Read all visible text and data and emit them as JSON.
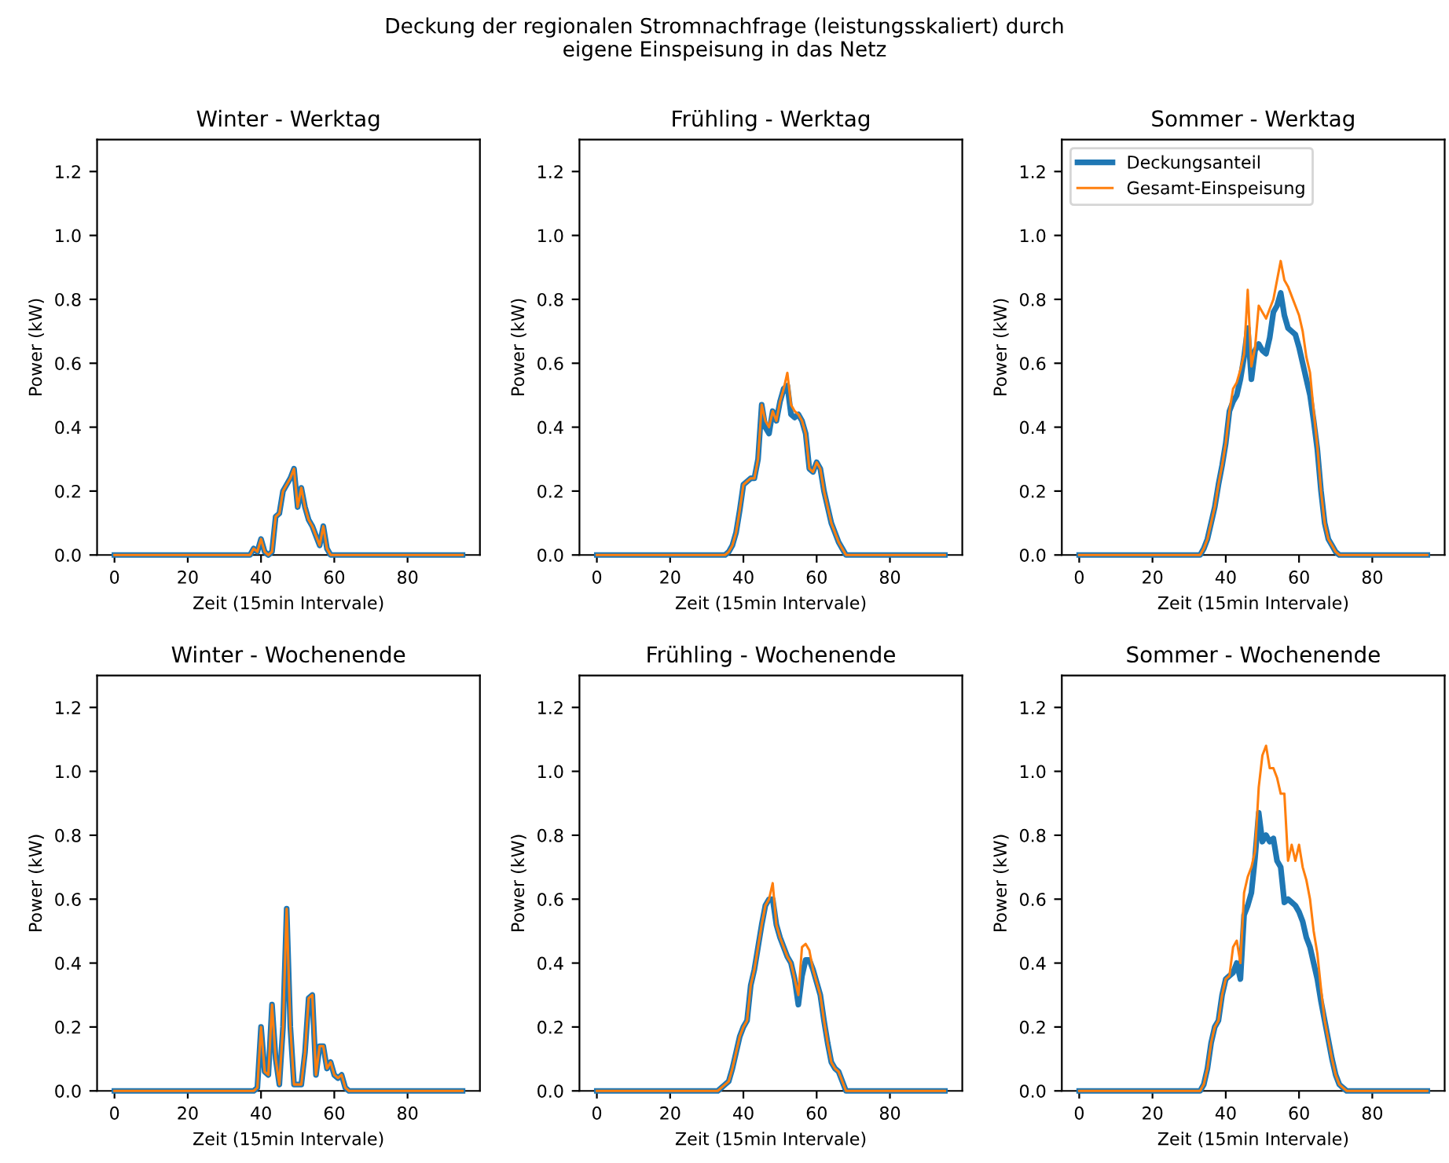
{
  "chart_data": [
    {
      "type": "line",
      "title": "Winter - Werktag",
      "xlabel": "Zeit (15min Intervale)",
      "ylabel": "Power (kW)",
      "annotations": [
        "Deckung der regionalen Stromnachfrage (leistungsskaliert) durch\neigene Einspeisung in das Netz"
      ],
      "x": [
        0,
        37,
        38,
        39,
        40,
        41,
        42,
        43,
        44,
        45,
        46,
        47,
        48,
        49,
        50,
        51,
        52,
        53,
        54,
        55,
        56,
        57,
        58,
        59,
        95
      ],
      "series": [
        {
          "color": "#1f77b4",
          "values": [
            0,
            0,
            0.02,
            0.01,
            0.05,
            0.01,
            0,
            0.01,
            0.12,
            0.13,
            0.2,
            0.22,
            0.24,
            0.27,
            0.15,
            0.21,
            0.15,
            0.11,
            0.09,
            0.06,
            0.03,
            0.09,
            0.02,
            0,
            0
          ]
        },
        {
          "color": "#ff7f0e",
          "values": [
            0,
            0,
            0.02,
            0.01,
            0.05,
            0.01,
            0,
            0.01,
            0.12,
            0.13,
            0.2,
            0.22,
            0.24,
            0.27,
            0.15,
            0.21,
            0.15,
            0.11,
            0.09,
            0.06,
            0.03,
            0.09,
            0.02,
            0,
            0
          ]
        }
      ],
      "xlim": [
        -4.75,
        99.75
      ],
      "ylim": [
        0,
        1.3
      ],
      "xticks": [
        0,
        20,
        40,
        60,
        80
      ],
      "yticks": [
        {
          "value": 0,
          "label": "0.0"
        },
        {
          "value": 0.2,
          "label": "0.2"
        },
        {
          "value": 0.4,
          "label": "0.4"
        },
        {
          "value": 0.6,
          "label": "0.6"
        },
        {
          "value": 0.8,
          "label": "0.8"
        },
        {
          "value": 1.0,
          "label": "1.0"
        },
        {
          "value": 1.2,
          "label": "1.2"
        }
      ]
    },
    {
      "type": "line",
      "title": "Frühling - Werktag",
      "xlabel": "Zeit (15min Intervale)",
      "ylabel": "Power (kW)",
      "x": [
        0,
        35,
        36,
        37,
        38,
        39,
        40,
        41,
        42,
        43,
        44,
        45,
        46,
        47,
        48,
        49,
        50,
        51,
        52,
        53,
        54,
        55,
        56,
        57,
        58,
        59,
        60,
        61,
        62,
        63,
        64,
        65,
        66,
        67,
        68,
        95
      ],
      "series": [
        {
          "color": "#1f77b4",
          "values": [
            0,
            0,
            0.01,
            0.03,
            0.07,
            0.14,
            0.22,
            0.23,
            0.24,
            0.24,
            0.3,
            0.47,
            0.4,
            0.38,
            0.45,
            0.42,
            0.48,
            0.52,
            0.53,
            0.44,
            0.43,
            0.44,
            0.42,
            0.38,
            0.27,
            0.26,
            0.29,
            0.27,
            0.2,
            0.15,
            0.1,
            0.07,
            0.04,
            0.02,
            0,
            0
          ]
        },
        {
          "color": "#ff7f0e",
          "values": [
            0,
            0,
            0.01,
            0.03,
            0.07,
            0.14,
            0.22,
            0.23,
            0.24,
            0.24,
            0.3,
            0.47,
            0.42,
            0.4,
            0.45,
            0.42,
            0.48,
            0.52,
            0.57,
            0.47,
            0.45,
            0.44,
            0.42,
            0.38,
            0.27,
            0.26,
            0.29,
            0.27,
            0.2,
            0.15,
            0.1,
            0.07,
            0.04,
            0.02,
            0,
            0
          ]
        }
      ],
      "xlim": [
        -4.75,
        99.75
      ],
      "ylim": [
        0,
        1.3
      ],
      "xticks": [
        0,
        20,
        40,
        60,
        80
      ],
      "yticks": [
        {
          "value": 0,
          "label": "0.0"
        },
        {
          "value": 0.2,
          "label": "0.2"
        },
        {
          "value": 0.4,
          "label": "0.4"
        },
        {
          "value": 0.6,
          "label": "0.6"
        },
        {
          "value": 0.8,
          "label": "0.8"
        },
        {
          "value": 1.0,
          "label": "1.0"
        },
        {
          "value": 1.2,
          "label": "1.2"
        }
      ]
    },
    {
      "type": "line",
      "title": "Sommer - Werktag",
      "xlabel": "Zeit (15min Intervale)",
      "ylabel": "Power (kW)",
      "legend": "upper left",
      "x": [
        0,
        33,
        34,
        35,
        36,
        37,
        38,
        39,
        40,
        41,
        42,
        43,
        44,
        45,
        46,
        47,
        48,
        49,
        50,
        51,
        52,
        53,
        54,
        55,
        56,
        57,
        58,
        59,
        60,
        61,
        62,
        63,
        64,
        65,
        66,
        67,
        68,
        69,
        70,
        71,
        95
      ],
      "series": [
        {
          "name": "Deckungsanteil",
          "color": "#1f77b4",
          "values": [
            0,
            0,
            0.02,
            0.05,
            0.1,
            0.15,
            0.22,
            0.28,
            0.35,
            0.45,
            0.48,
            0.5,
            0.55,
            0.62,
            0.71,
            0.55,
            0.64,
            0.66,
            0.64,
            0.63,
            0.68,
            0.76,
            0.78,
            0.82,
            0.75,
            0.71,
            0.7,
            0.69,
            0.65,
            0.6,
            0.55,
            0.5,
            0.42,
            0.33,
            0.2,
            0.1,
            0.05,
            0.03,
            0.01,
            0,
            0
          ]
        },
        {
          "name": "Gesamt-Einspeisung",
          "color": "#ff7f0e",
          "values": [
            0,
            0,
            0.02,
            0.05,
            0.1,
            0.15,
            0.22,
            0.28,
            0.35,
            0.45,
            0.52,
            0.54,
            0.58,
            0.63,
            0.83,
            0.59,
            0.65,
            0.78,
            0.76,
            0.74,
            0.77,
            0.8,
            0.86,
            0.92,
            0.86,
            0.84,
            0.81,
            0.78,
            0.75,
            0.7,
            0.62,
            0.57,
            0.45,
            0.34,
            0.2,
            0.1,
            0.05,
            0.03,
            0.01,
            0,
            0
          ]
        }
      ],
      "xlim": [
        -4.75,
        99.75
      ],
      "ylim": [
        0,
        1.3
      ],
      "xticks": [
        0,
        20,
        40,
        60,
        80
      ],
      "yticks": [
        {
          "value": 0,
          "label": "0.0"
        },
        {
          "value": 0.2,
          "label": "0.2"
        },
        {
          "value": 0.4,
          "label": "0.4"
        },
        {
          "value": 0.6,
          "label": "0.6"
        },
        {
          "value": 0.8,
          "label": "0.8"
        },
        {
          "value": 1.0,
          "label": "1.0"
        },
        {
          "value": 1.2,
          "label": "1.2"
        }
      ]
    },
    {
      "type": "line",
      "title": "Winter - Wochenende",
      "xlabel": "Zeit (15min Intervale)",
      "ylabel": "Power (kW)",
      "x": [
        0,
        38,
        39,
        40,
        41,
        42,
        43,
        44,
        45,
        46,
        47,
        48,
        49,
        50,
        51,
        52,
        53,
        54,
        55,
        56,
        57,
        58,
        59,
        60,
        61,
        62,
        63,
        64,
        95
      ],
      "series": [
        {
          "color": "#1f77b4",
          "values": [
            0,
            0,
            0.01,
            0.2,
            0.06,
            0.05,
            0.27,
            0.1,
            0.02,
            0.2,
            0.57,
            0.2,
            0.02,
            0.02,
            0.02,
            0.12,
            0.29,
            0.3,
            0.05,
            0.14,
            0.14,
            0.07,
            0.09,
            0.05,
            0.04,
            0.05,
            0.01,
            0,
            0
          ]
        },
        {
          "color": "#ff7f0e",
          "values": [
            0,
            0,
            0.01,
            0.2,
            0.06,
            0.05,
            0.27,
            0.1,
            0.02,
            0.2,
            0.57,
            0.2,
            0.02,
            0.02,
            0.02,
            0.12,
            0.29,
            0.3,
            0.05,
            0.14,
            0.14,
            0.07,
            0.09,
            0.05,
            0.04,
            0.05,
            0.01,
            0,
            0
          ]
        }
      ],
      "xlim": [
        -4.75,
        99.75
      ],
      "ylim": [
        0,
        1.3
      ],
      "xticks": [
        0,
        20,
        40,
        60,
        80
      ],
      "yticks": [
        {
          "value": 0,
          "label": "0.0"
        },
        {
          "value": 0.2,
          "label": "0.2"
        },
        {
          "value": 0.4,
          "label": "0.4"
        },
        {
          "value": 0.6,
          "label": "0.6"
        },
        {
          "value": 0.8,
          "label": "0.8"
        },
        {
          "value": 1.0,
          "label": "1.0"
        },
        {
          "value": 1.2,
          "label": "1.2"
        }
      ]
    },
    {
      "type": "line",
      "title": "Frühling - Wochenende",
      "xlabel": "Zeit (15min Intervale)",
      "ylabel": "Power (kW)",
      "x": [
        0,
        33,
        34,
        35,
        36,
        37,
        38,
        39,
        40,
        41,
        42,
        43,
        44,
        45,
        46,
        47,
        48,
        49,
        50,
        51,
        52,
        53,
        54,
        55,
        56,
        57,
        58,
        59,
        60,
        61,
        62,
        63,
        64,
        65,
        66,
        67,
        68,
        95
      ],
      "series": [
        {
          "color": "#1f77b4",
          "values": [
            0,
            0,
            0.01,
            0.02,
            0.03,
            0.07,
            0.12,
            0.17,
            0.2,
            0.22,
            0.33,
            0.38,
            0.45,
            0.52,
            0.58,
            0.6,
            0.6,
            0.52,
            0.48,
            0.45,
            0.42,
            0.4,
            0.35,
            0.27,
            0.36,
            0.41,
            0.41,
            0.38,
            0.34,
            0.3,
            0.22,
            0.15,
            0.09,
            0.07,
            0.06,
            0.03,
            0,
            0
          ]
        },
        {
          "color": "#ff7f0e",
          "values": [
            0,
            0,
            0.01,
            0.02,
            0.03,
            0.07,
            0.12,
            0.17,
            0.2,
            0.22,
            0.33,
            0.38,
            0.45,
            0.52,
            0.58,
            0.6,
            0.65,
            0.52,
            0.48,
            0.45,
            0.42,
            0.4,
            0.35,
            0.3,
            0.45,
            0.46,
            0.44,
            0.38,
            0.34,
            0.3,
            0.22,
            0.15,
            0.09,
            0.07,
            0.06,
            0.03,
            0,
            0
          ]
        }
      ],
      "xlim": [
        -4.75,
        99.75
      ],
      "ylim": [
        0,
        1.3
      ],
      "xticks": [
        0,
        20,
        40,
        60,
        80
      ],
      "yticks": [
        {
          "value": 0,
          "label": "0.0"
        },
        {
          "value": 0.2,
          "label": "0.2"
        },
        {
          "value": 0.4,
          "label": "0.4"
        },
        {
          "value": 0.6,
          "label": "0.6"
        },
        {
          "value": 0.8,
          "label": "0.8"
        },
        {
          "value": 1.0,
          "label": "1.0"
        },
        {
          "value": 1.2,
          "label": "1.2"
        }
      ]
    },
    {
      "type": "line",
      "title": "Sommer - Wochenende",
      "xlabel": "Zeit (15min Intervale)",
      "ylabel": "Power (kW)",
      "x": [
        0,
        33,
        34,
        35,
        36,
        37,
        38,
        39,
        40,
        41,
        42,
        43,
        44,
        45,
        46,
        47,
        48,
        49,
        50,
        51,
        52,
        53,
        54,
        55,
        56,
        57,
        58,
        59,
        60,
        61,
        62,
        63,
        64,
        65,
        66,
        67,
        68,
        69,
        70,
        71,
        72,
        73,
        95
      ],
      "series": [
        {
          "color": "#1f77b4",
          "values": [
            0,
            0,
            0.02,
            0.07,
            0.15,
            0.2,
            0.22,
            0.3,
            0.35,
            0.36,
            0.37,
            0.4,
            0.35,
            0.55,
            0.58,
            0.62,
            0.73,
            0.87,
            0.78,
            0.8,
            0.78,
            0.79,
            0.72,
            0.7,
            0.59,
            0.6,
            0.59,
            0.58,
            0.56,
            0.53,
            0.48,
            0.45,
            0.4,
            0.35,
            0.28,
            0.22,
            0.16,
            0.1,
            0.05,
            0.02,
            0.01,
            0,
            0
          ]
        },
        {
          "color": "#ff7f0e",
          "values": [
            0,
            0,
            0.02,
            0.07,
            0.15,
            0.2,
            0.22,
            0.3,
            0.35,
            0.36,
            0.45,
            0.47,
            0.4,
            0.62,
            0.67,
            0.7,
            0.75,
            0.95,
            1.05,
            1.08,
            1.01,
            1.01,
            0.98,
            0.93,
            0.93,
            0.72,
            0.77,
            0.72,
            0.77,
            0.7,
            0.66,
            0.6,
            0.5,
            0.43,
            0.32,
            0.22,
            0.16,
            0.1,
            0.05,
            0.02,
            0.01,
            0,
            0
          ]
        }
      ],
      "xlim": [
        -4.75,
        99.75
      ],
      "ylim": [
        0,
        1.3
      ],
      "xticks": [
        0,
        20,
        40,
        60,
        80
      ],
      "yticks": [
        {
          "value": 0,
          "label": "0.0"
        },
        {
          "value": 0.2,
          "label": "0.2"
        },
        {
          "value": 0.4,
          "label": "0.4"
        },
        {
          "value": 0.6,
          "label": "0.6"
        },
        {
          "value": 0.8,
          "label": "0.8"
        },
        {
          "value": 1.0,
          "label": "1.0"
        },
        {
          "value": 1.2,
          "label": "1.2"
        }
      ]
    }
  ]
}
